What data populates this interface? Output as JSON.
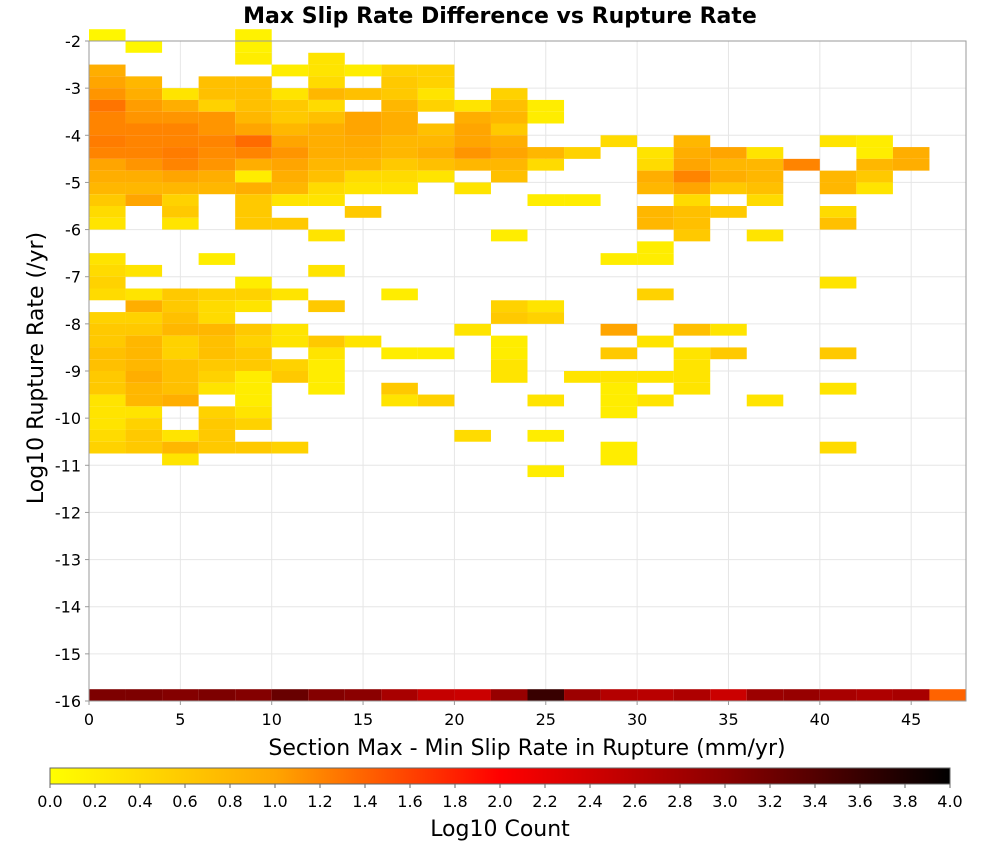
{
  "chart_data": {
    "type": "heatmap",
    "title": "Max Slip Rate Difference vs Rupture Rate",
    "xlabel": "Section Max - Min Slip Rate in Rupture (mm/yr)",
    "ylabel": "Log10 Rupture Rate (/yr)",
    "xlim": [
      0,
      48
    ],
    "ylim": [
      -16,
      -2
    ],
    "x_ticks": [
      "0",
      "5",
      "10",
      "15",
      "20",
      "25",
      "30",
      "35",
      "40",
      "45"
    ],
    "y_ticks": [
      "-2",
      "-3",
      "-4",
      "-5",
      "-6",
      "-7",
      "-8",
      "-9",
      "-10",
      "-11",
      "-12",
      "-13",
      "-14",
      "-15",
      "-16"
    ],
    "bin_width_x": 2,
    "bin_height_y": 0.25,
    "grid": true,
    "colorbar": {
      "label": "Log10 Count",
      "range": [
        0,
        4
      ],
      "ticks": [
        "0.0",
        "0.2",
        "0.4",
        "0.6",
        "0.8",
        "1.0",
        "1.2",
        "1.4",
        "1.6",
        "1.8",
        "2.0",
        "2.2",
        "2.4",
        "2.6",
        "2.8",
        "3.0",
        "3.2",
        "3.4",
        "3.6",
        "3.8",
        "4.0"
      ],
      "colors": [
        "#ffff00",
        "#ffa500",
        "#ff0000",
        "#8b0000",
        "#000000"
      ]
    },
    "cells_note_format": "[x_bin_start, y_bin_start, log10_count]",
    "cells": [
      [
        0,
        -2,
        0.1
      ],
      [
        2,
        -2.25,
        0.1
      ],
      [
        8,
        -2,
        0.15
      ],
      [
        8,
        -2.25,
        0.15
      ],
      [
        8,
        -2.5,
        0.2
      ],
      [
        0,
        -2.75,
        0.9
      ],
      [
        0,
        -3,
        1.0
      ],
      [
        0,
        -3.25,
        1.1
      ],
      [
        0,
        -3.5,
        1.3
      ],
      [
        0,
        -3.75,
        1.2
      ],
      [
        0,
        -4,
        1.2
      ],
      [
        0,
        -4.25,
        1.25
      ],
      [
        0,
        -4.5,
        1.2
      ],
      [
        0,
        -4.75,
        1.0
      ],
      [
        0,
        -5,
        0.9
      ],
      [
        0,
        -5.25,
        0.8
      ],
      [
        0,
        -5.5,
        0.6
      ],
      [
        0,
        -5.75,
        0.4
      ],
      [
        0,
        -6,
        0.3
      ],
      [
        2,
        -3,
        0.8
      ],
      [
        2,
        -3.25,
        0.9
      ],
      [
        2,
        -3.5,
        1.05
      ],
      [
        2,
        -3.75,
        1.1
      ],
      [
        2,
        -4,
        1.2
      ],
      [
        2,
        -4.25,
        1.2
      ],
      [
        2,
        -4.5,
        1.2
      ],
      [
        2,
        -4.75,
        1.1
      ],
      [
        2,
        -5,
        0.9
      ],
      [
        2,
        -5.25,
        0.8
      ],
      [
        2,
        -5.5,
        1.0
      ],
      [
        4,
        -3.25,
        0.3
      ],
      [
        4,
        -3.5,
        0.9
      ],
      [
        4,
        -3.75,
        1.1
      ],
      [
        4,
        -4,
        1.2
      ],
      [
        4,
        -4.25,
        1.2
      ],
      [
        4,
        -4.5,
        1.25
      ],
      [
        4,
        -4.75,
        1.2
      ],
      [
        4,
        -5,
        1.0
      ],
      [
        4,
        -5.25,
        0.8
      ],
      [
        4,
        -5.5,
        0.5
      ],
      [
        4,
        -5.75,
        0.6
      ],
      [
        4,
        -6,
        0.3
      ],
      [
        6,
        -3,
        0.7
      ],
      [
        6,
        -3.25,
        0.7
      ],
      [
        6,
        -3.5,
        0.5
      ],
      [
        6,
        -3.75,
        1.1
      ],
      [
        6,
        -4,
        1.1
      ],
      [
        6,
        -4.25,
        1.2
      ],
      [
        6,
        -4.5,
        1.15
      ],
      [
        6,
        -4.75,
        1.1
      ],
      [
        6,
        -5,
        0.9
      ],
      [
        6,
        -5.25,
        0.8
      ],
      [
        8,
        -3,
        0.7
      ],
      [
        8,
        -3.25,
        0.7
      ],
      [
        8,
        -3.5,
        0.7
      ],
      [
        8,
        -3.75,
        0.8
      ],
      [
        8,
        -4,
        1.0
      ],
      [
        8,
        -4.25,
        1.35
      ],
      [
        8,
        -4.5,
        1.2
      ],
      [
        8,
        -4.75,
        0.9
      ],
      [
        8,
        -5,
        0.2
      ],
      [
        8,
        -5.25,
        0.9
      ],
      [
        8,
        -5.5,
        0.6
      ],
      [
        8,
        -5.75,
        0.6
      ],
      [
        8,
        -6,
        0.6
      ],
      [
        10,
        -2.75,
        0.2
      ],
      [
        10,
        -3.25,
        0.3
      ],
      [
        10,
        -3.5,
        0.6
      ],
      [
        10,
        -3.75,
        0.6
      ],
      [
        10,
        -4,
        0.8
      ],
      [
        10,
        -4.25,
        1.0
      ],
      [
        10,
        -4.5,
        1.1
      ],
      [
        10,
        -4.75,
        1.0
      ],
      [
        10,
        -5,
        0.9
      ],
      [
        10,
        -5.25,
        0.8
      ],
      [
        10,
        -5.5,
        0.3
      ],
      [
        10,
        -6,
        0.6
      ],
      [
        12,
        -2.5,
        0.3
      ],
      [
        12,
        -2.75,
        0.3
      ],
      [
        12,
        -3,
        0.4
      ],
      [
        12,
        -3.25,
        0.8
      ],
      [
        12,
        -3.5,
        0.4
      ],
      [
        12,
        -3.75,
        0.7
      ],
      [
        12,
        -4,
        0.9
      ],
      [
        12,
        -4.25,
        0.9
      ],
      [
        12,
        -4.5,
        0.9
      ],
      [
        12,
        -4.75,
        0.8
      ],
      [
        12,
        -5,
        0.7
      ],
      [
        12,
        -5.25,
        0.4
      ],
      [
        12,
        -5.5,
        0.3
      ],
      [
        12,
        -6.25,
        0.3
      ],
      [
        14,
        -2.75,
        0.2
      ],
      [
        14,
        -3.25,
        0.7
      ],
      [
        14,
        -3.75,
        1.0
      ],
      [
        14,
        -4,
        1.0
      ],
      [
        14,
        -4.25,
        0.95
      ],
      [
        14,
        -4.5,
        0.9
      ],
      [
        14,
        -4.75,
        0.8
      ],
      [
        14,
        -5,
        0.4
      ],
      [
        14,
        -5.25,
        0.3
      ],
      [
        14,
        -5.75,
        0.6
      ],
      [
        16,
        -2.75,
        0.5
      ],
      [
        16,
        -3,
        0.6
      ],
      [
        16,
        -3.25,
        0.6
      ],
      [
        16,
        -3.5,
        0.8
      ],
      [
        16,
        -3.75,
        0.9
      ],
      [
        16,
        -4,
        0.9
      ],
      [
        16,
        -4.25,
        0.8
      ],
      [
        16,
        -4.5,
        0.8
      ],
      [
        16,
        -4.75,
        0.6
      ],
      [
        16,
        -5,
        0.4
      ],
      [
        16,
        -5.25,
        0.3
      ],
      [
        18,
        -2.75,
        0.5
      ],
      [
        18,
        -3,
        0.5
      ],
      [
        18,
        -3.25,
        0.3
      ],
      [
        18,
        -3.5,
        0.5
      ],
      [
        18,
        -4,
        0.7
      ],
      [
        18,
        -4.25,
        0.8
      ],
      [
        18,
        -4.5,
        0.9
      ],
      [
        18,
        -4.75,
        0.7
      ],
      [
        18,
        -5,
        0.3
      ],
      [
        20,
        -3.5,
        0.3
      ],
      [
        20,
        -3.75,
        0.9
      ],
      [
        20,
        -4,
        1.0
      ],
      [
        20,
        -4.25,
        1.0
      ],
      [
        20,
        -4.5,
        1.1
      ],
      [
        20,
        -4.75,
        0.8
      ],
      [
        20,
        -5.25,
        0.3
      ],
      [
        22,
        -3.25,
        0.5
      ],
      [
        22,
        -3.5,
        0.7
      ],
      [
        22,
        -3.75,
        0.8
      ],
      [
        22,
        -4,
        0.6
      ],
      [
        22,
        -4.25,
        0.9
      ],
      [
        22,
        -4.5,
        1.0
      ],
      [
        22,
        -4.75,
        0.8
      ],
      [
        22,
        -5,
        0.7
      ],
      [
        22,
        -6.25,
        0.2
      ],
      [
        24,
        -3.5,
        0.2
      ],
      [
        24,
        -3.75,
        0.2
      ],
      [
        24,
        -4.5,
        0.8
      ],
      [
        24,
        -4.75,
        0.4
      ],
      [
        24,
        -5.5,
        0.2
      ],
      [
        26,
        -4.5,
        0.5
      ],
      [
        26,
        -5.5,
        0.2
      ],
      [
        28,
        -4.25,
        0.4
      ],
      [
        30,
        -4.5,
        0.3
      ],
      [
        30,
        -4.75,
        0.4
      ],
      [
        30,
        -5,
        0.9
      ],
      [
        30,
        -5.25,
        0.8
      ],
      [
        30,
        -5.75,
        0.8
      ],
      [
        30,
        -6,
        0.8
      ],
      [
        32,
        -4.25,
        0.8
      ],
      [
        32,
        -4.5,
        0.9
      ],
      [
        32,
        -4.75,
        1.0
      ],
      [
        32,
        -5,
        1.2
      ],
      [
        32,
        -5.25,
        1.0
      ],
      [
        32,
        -5.5,
        0.4
      ],
      [
        32,
        -5.75,
        0.7
      ],
      [
        32,
        -6,
        0.7
      ],
      [
        32,
        -6.25,
        0.6
      ],
      [
        34,
        -4.5,
        1.0
      ],
      [
        34,
        -4.75,
        0.8
      ],
      [
        34,
        -5,
        0.9
      ],
      [
        34,
        -5.25,
        0.6
      ],
      [
        34,
        -5.75,
        0.6
      ],
      [
        36,
        -4.5,
        0.3
      ],
      [
        36,
        -4.75,
        0.8
      ],
      [
        36,
        -5,
        0.8
      ],
      [
        36,
        -5.25,
        0.7
      ],
      [
        36,
        -5.5,
        0.4
      ],
      [
        36,
        -6.25,
        0.3
      ],
      [
        38,
        -4.75,
        1.2
      ],
      [
        40,
        -4.25,
        0.3
      ],
      [
        40,
        -5,
        0.8
      ],
      [
        40,
        -5.25,
        0.8
      ],
      [
        40,
        -5.75,
        0.4
      ],
      [
        40,
        -6,
        0.7
      ],
      [
        42,
        -4.25,
        0.2
      ],
      [
        42,
        -4.5,
        0.2
      ],
      [
        42,
        -4.75,
        0.8
      ],
      [
        42,
        -5,
        0.6
      ],
      [
        42,
        -5.25,
        0.3
      ],
      [
        44,
        -4.5,
        0.9
      ],
      [
        44,
        -4.75,
        0.9
      ],
      [
        0,
        -6.75,
        0.3
      ],
      [
        0,
        -7,
        0.4
      ],
      [
        0,
        -7.25,
        0.5
      ],
      [
        0,
        -7.5,
        0.4
      ],
      [
        0,
        -8,
        0.5
      ],
      [
        0,
        -8.25,
        0.6
      ],
      [
        0,
        -8.5,
        0.6
      ],
      [
        0,
        -8.75,
        0.7
      ],
      [
        0,
        -9,
        0.7
      ],
      [
        0,
        -9.25,
        0.6
      ],
      [
        0,
        -9.5,
        0.6
      ],
      [
        0,
        -9.75,
        0.3
      ],
      [
        0,
        -10,
        0.3
      ],
      [
        0,
        -10.25,
        0.3
      ],
      [
        0,
        -10.5,
        0.4
      ],
      [
        0,
        -10.75,
        0.5
      ],
      [
        2,
        -7,
        0.3
      ],
      [
        2,
        -7.5,
        0.3
      ],
      [
        2,
        -7.75,
        0.9
      ],
      [
        2,
        -8,
        0.5
      ],
      [
        2,
        -8.25,
        0.6
      ],
      [
        2,
        -8.5,
        0.8
      ],
      [
        2,
        -8.75,
        0.8
      ],
      [
        2,
        -9,
        0.8
      ],
      [
        2,
        -9.25,
        0.9
      ],
      [
        2,
        -9.5,
        0.8
      ],
      [
        2,
        -9.75,
        0.8
      ],
      [
        2,
        -10,
        0.3
      ],
      [
        2,
        -10.25,
        0.5
      ],
      [
        2,
        -10.5,
        0.6
      ],
      [
        2,
        -10.75,
        0.6
      ],
      [
        4,
        -7.5,
        0.6
      ],
      [
        4,
        -7.75,
        0.6
      ],
      [
        4,
        -8,
        0.7
      ],
      [
        4,
        -8.25,
        0.8
      ],
      [
        4,
        -8.5,
        0.5
      ],
      [
        4,
        -8.75,
        0.5
      ],
      [
        4,
        -9,
        0.7
      ],
      [
        4,
        -9.25,
        0.7
      ],
      [
        4,
        -9.5,
        0.7
      ],
      [
        4,
        -9.75,
        0.9
      ],
      [
        4,
        -10.5,
        0.3
      ],
      [
        4,
        -10.75,
        0.8
      ],
      [
        4,
        -11,
        0.3
      ],
      [
        6,
        -6.75,
        0.2
      ],
      [
        6,
        -7.5,
        0.5
      ],
      [
        6,
        -7.75,
        0.4
      ],
      [
        6,
        -8,
        0.4
      ],
      [
        6,
        -8.25,
        0.8
      ],
      [
        6,
        -8.5,
        0.7
      ],
      [
        6,
        -8.75,
        0.7
      ],
      [
        6,
        -9,
        0.6
      ],
      [
        6,
        -9.25,
        0.5
      ],
      [
        6,
        -9.5,
        0.3
      ],
      [
        6,
        -10,
        0.5
      ],
      [
        6,
        -10.25,
        0.6
      ],
      [
        6,
        -10.5,
        0.6
      ],
      [
        6,
        -10.75,
        0.6
      ],
      [
        8,
        -7.25,
        0.2
      ],
      [
        8,
        -7.5,
        0.5
      ],
      [
        8,
        -7.75,
        0.3
      ],
      [
        8,
        -8.25,
        0.6
      ],
      [
        8,
        -8.5,
        0.5
      ],
      [
        8,
        -8.75,
        0.6
      ],
      [
        8,
        -9,
        0.6
      ],
      [
        8,
        -9.25,
        0.2
      ],
      [
        8,
        -9.5,
        0.2
      ],
      [
        8,
        -9.75,
        0.2
      ],
      [
        8,
        -10,
        0.3
      ],
      [
        8,
        -10.25,
        0.5
      ],
      [
        8,
        -10.75,
        0.6
      ],
      [
        10,
        -7.5,
        0.3
      ],
      [
        10,
        -8.25,
        0.3
      ],
      [
        10,
        -8.5,
        0.3
      ],
      [
        10,
        -9,
        0.5
      ],
      [
        10,
        -9.25,
        0.6
      ],
      [
        10,
        -10.75,
        0.5
      ],
      [
        12,
        -7,
        0.3
      ],
      [
        12,
        -7.75,
        0.6
      ],
      [
        12,
        -8.5,
        0.6
      ],
      [
        12,
        -8.75,
        0.3
      ],
      [
        12,
        -9,
        0.2
      ],
      [
        12,
        -9.25,
        0.2
      ],
      [
        12,
        -9.5,
        0.2
      ],
      [
        14,
        -8.5,
        0.3
      ],
      [
        16,
        -7.5,
        0.2
      ],
      [
        16,
        -8.75,
        0.2
      ],
      [
        16,
        -9.5,
        0.6
      ],
      [
        16,
        -9.75,
        0.3
      ],
      [
        18,
        -8.75,
        0.2
      ],
      [
        18,
        -9.75,
        0.5
      ],
      [
        20,
        -8.25,
        0.3
      ],
      [
        20,
        -10.5,
        0.4
      ],
      [
        22,
        -7.75,
        0.5
      ],
      [
        22,
        -8,
        0.6
      ],
      [
        22,
        -8.5,
        0.2
      ],
      [
        22,
        -8.75,
        0.2
      ],
      [
        22,
        -9,
        0.3
      ],
      [
        22,
        -9.25,
        0.3
      ],
      [
        24,
        -7.75,
        0.3
      ],
      [
        24,
        -8,
        0.5
      ],
      [
        24,
        -9.75,
        0.3
      ],
      [
        24,
        -10.5,
        0.2
      ],
      [
        24,
        -11.25,
        0.2
      ],
      [
        26,
        -9.25,
        0.3
      ],
      [
        28,
        -6.75,
        0.2
      ],
      [
        28,
        -8.25,
        1.0
      ],
      [
        28,
        -8.75,
        0.6
      ],
      [
        28,
        -9.25,
        0.3
      ],
      [
        28,
        -9.5,
        0.2
      ],
      [
        28,
        -9.75,
        0.2
      ],
      [
        28,
        -10,
        0.2
      ],
      [
        28,
        -10.75,
        0.2
      ],
      [
        28,
        -11,
        0.2
      ],
      [
        30,
        -6.5,
        0.2
      ],
      [
        30,
        -6.75,
        0.2
      ],
      [
        30,
        -7.5,
        0.5
      ],
      [
        30,
        -8.5,
        0.3
      ],
      [
        30,
        -9.25,
        0.3
      ],
      [
        30,
        -9.75,
        0.3
      ],
      [
        32,
        -8.25,
        0.7
      ],
      [
        32,
        -8.75,
        0.3
      ],
      [
        32,
        -9,
        0.3
      ],
      [
        32,
        -9.25,
        0.3
      ],
      [
        32,
        -9.5,
        0.3
      ],
      [
        34,
        -8.25,
        0.3
      ],
      [
        34,
        -8.75,
        0.6
      ],
      [
        36,
        -9.75,
        0.3
      ],
      [
        40,
        -7.25,
        0.3
      ],
      [
        40,
        -8.75,
        0.6
      ],
      [
        40,
        -9.5,
        0.3
      ],
      [
        40,
        -10.75,
        0.4
      ],
      [
        0,
        -16,
        3.1
      ],
      [
        2,
        -16,
        3.1
      ],
      [
        4,
        -16,
        3.05
      ],
      [
        6,
        -16,
        3.1
      ],
      [
        8,
        -16,
        3.05
      ],
      [
        10,
        -16,
        3.25
      ],
      [
        12,
        -16,
        3.05
      ],
      [
        14,
        -16,
        3.0
      ],
      [
        16,
        -16,
        2.75
      ],
      [
        18,
        -16,
        2.5
      ],
      [
        20,
        -16,
        2.45
      ],
      [
        22,
        -16,
        2.9
      ],
      [
        24,
        -16,
        3.6
      ],
      [
        26,
        -16,
        2.85
      ],
      [
        28,
        -16,
        2.65
      ],
      [
        30,
        -16,
        2.6
      ],
      [
        32,
        -16,
        2.7
      ],
      [
        34,
        -16,
        2.45
      ],
      [
        36,
        -16,
        2.85
      ],
      [
        38,
        -16,
        2.9
      ],
      [
        40,
        -16,
        2.75
      ],
      [
        42,
        -16,
        2.7
      ],
      [
        44,
        -16,
        2.75
      ],
      [
        46,
        -16,
        1.4
      ]
    ]
  }
}
